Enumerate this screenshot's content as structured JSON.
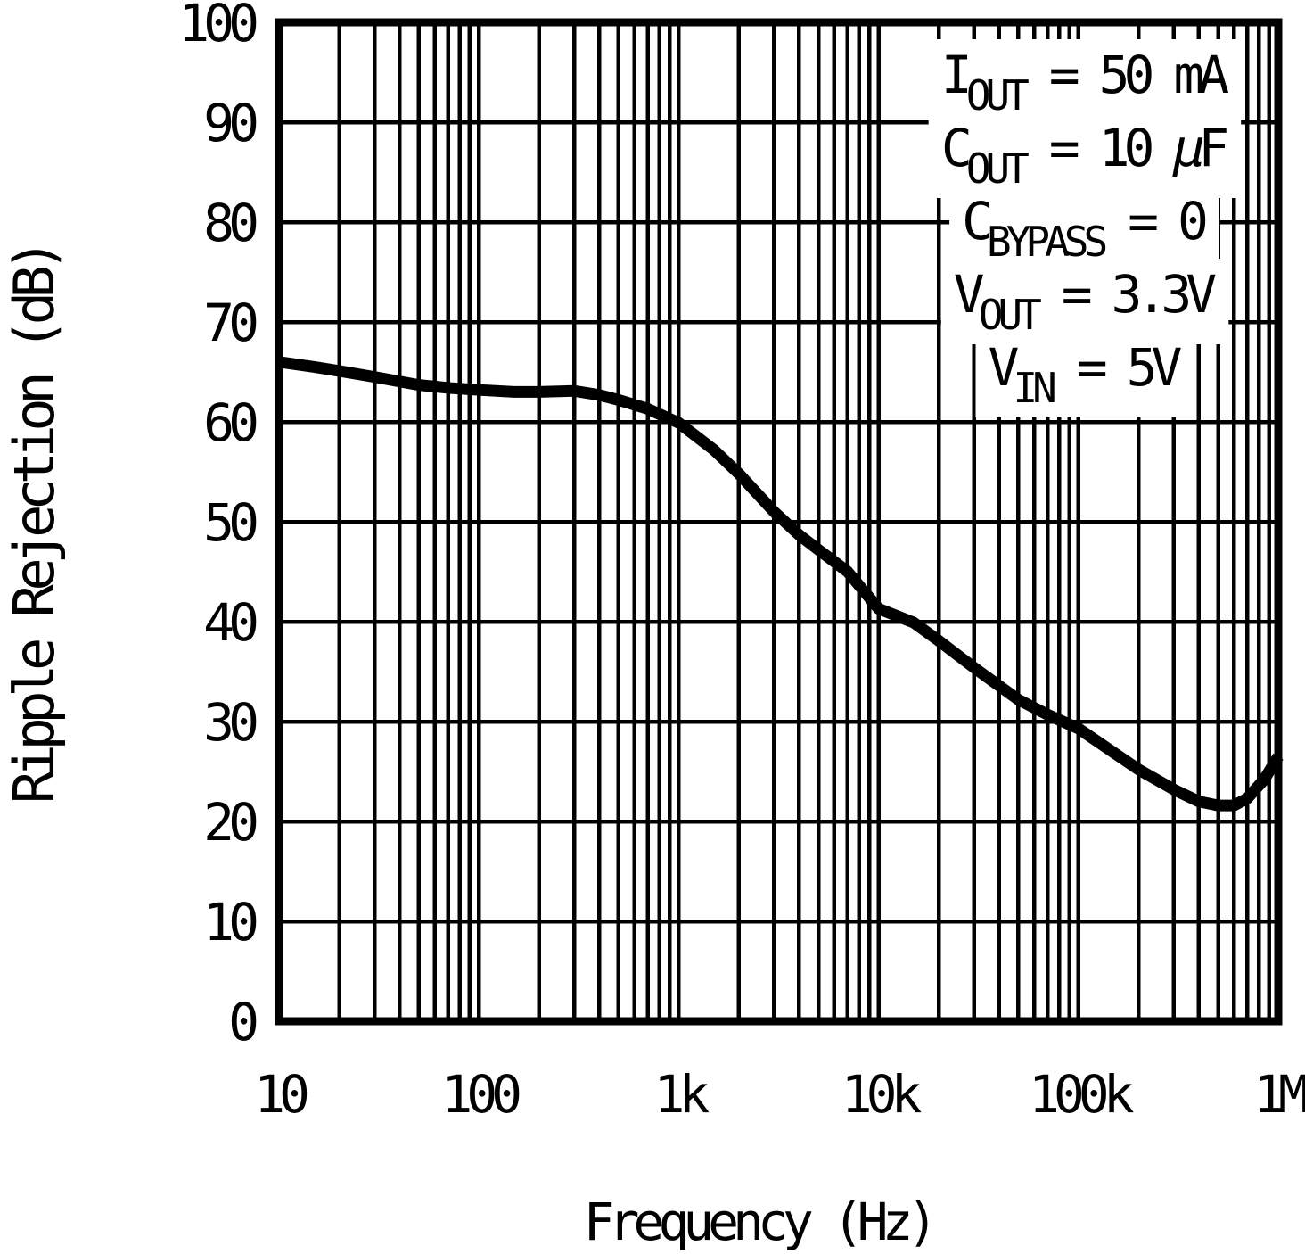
{
  "figure": {
    "background_color": "#ffffff",
    "ink_color": "#000000"
  },
  "chart_data": {
    "type": "line",
    "title": "",
    "xlabel": "Frequency (Hz)",
    "ylabel": "Ripple Rejection (dB)",
    "x_scale": "log",
    "x_range_hz": [
      10,
      1000000
    ],
    "x_tick_values": [
      10,
      100,
      1000,
      10000,
      100000,
      1000000
    ],
    "x_tick_labels": [
      "10",
      "100",
      "1k",
      "10k",
      "100k",
      "1M"
    ],
    "y_range_db": [
      0,
      100
    ],
    "y_tick_step": 10,
    "y_tick_values": [
      0,
      10,
      20,
      30,
      40,
      50,
      60,
      70,
      80,
      90,
      100
    ],
    "y_tick_labels": [
      "0",
      "10",
      "20",
      "30",
      "40",
      "50",
      "60",
      "70",
      "80",
      "90",
      "100"
    ],
    "grid": {
      "horizontal": "major every 10 dB",
      "vertical": "log major + minor (2-9) each decade",
      "legend": "none"
    },
    "series": [
      {
        "name": "Ripple Rejection",
        "x_hz": [
          10,
          15,
          20,
          30,
          50,
          70,
          100,
          150,
          200,
          300,
          400,
          500,
          700,
          1000,
          1500,
          2000,
          3000,
          4000,
          5000,
          7000,
          10000,
          15000,
          20000,
          30000,
          50000,
          70000,
          100000,
          150000,
          200000,
          300000,
          400000,
          500000,
          600000,
          700000,
          850000,
          1000000
        ],
        "y_db": [
          66.0,
          65.5,
          65.1,
          64.5,
          63.7,
          63.4,
          63.2,
          63.0,
          63.0,
          63.1,
          62.7,
          62.2,
          61.3,
          59.9,
          57.2,
          54.8,
          51.0,
          48.7,
          47.2,
          45.0,
          41.3,
          39.9,
          38.1,
          35.4,
          32.2,
          30.7,
          29.3,
          26.9,
          25.2,
          23.2,
          22.0,
          21.6,
          21.6,
          22.3,
          24.2,
          26.5
        ]
      }
    ],
    "conditions": [
      {
        "segments": [
          {
            "text": "I"
          },
          {
            "text": "OUT",
            "sub": true
          },
          {
            "text": " = 50 mA"
          }
        ]
      },
      {
        "segments": [
          {
            "text": "C"
          },
          {
            "text": "OUT",
            "sub": true
          },
          {
            "text": " = 10 "
          },
          {
            "text": "μ",
            "italic": true
          },
          {
            "text": "F"
          }
        ]
      },
      {
        "segments": [
          {
            "text": "C"
          },
          {
            "text": "BYPASS",
            "sub": true
          },
          {
            "text": " = 0"
          }
        ]
      },
      {
        "segments": [
          {
            "text": "V"
          },
          {
            "text": "OUT",
            "sub": true
          },
          {
            "text": " = 3.3V"
          }
        ]
      },
      {
        "segments": [
          {
            "text": "V"
          },
          {
            "text": "IN",
            "sub": true
          },
          {
            "text": " = 5V"
          }
        ]
      }
    ]
  }
}
